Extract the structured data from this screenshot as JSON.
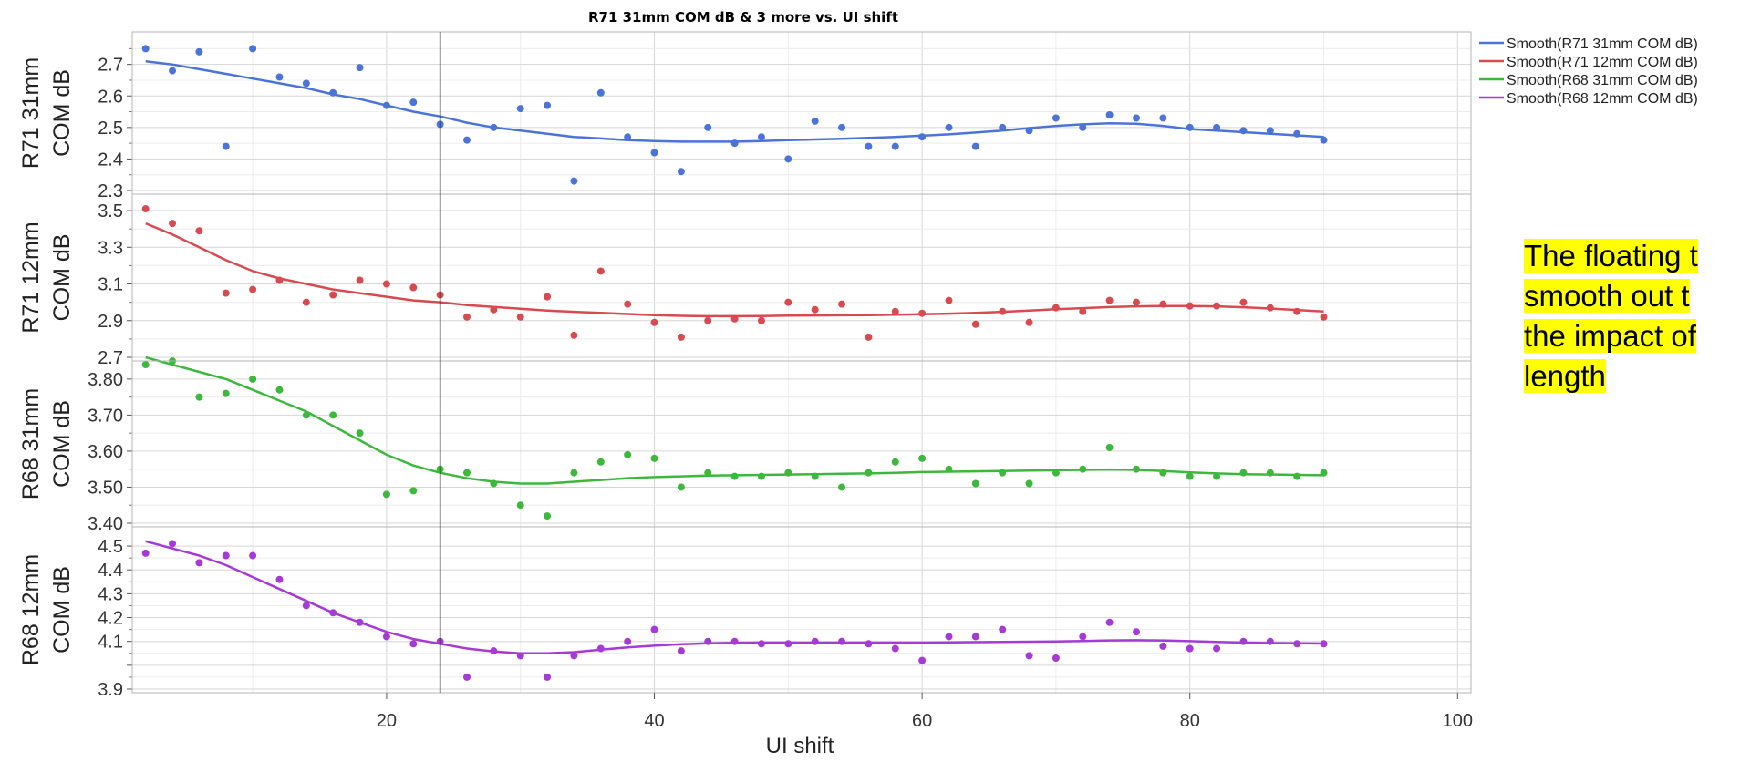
{
  "note": {
    "lines": [
      "The floating t",
      "smooth out t",
      "the impact of",
      "length"
    ],
    "highlight": "#ffff00"
  },
  "chart_data": {
    "type": "scatter",
    "title": "R71 31mm COM dB & 3 more vs. UI shift",
    "xlabel": "UI shift",
    "xlim": [
      1,
      101
    ],
    "xticks": [
      20,
      40,
      60,
      80,
      100
    ],
    "xtick_labels": [
      "20",
      "40",
      "60",
      "80",
      "100"
    ],
    "cursor_x": 24,
    "grid": true,
    "legend_position": "top-right",
    "x": [
      2,
      4,
      6,
      8,
      10,
      12,
      14,
      16,
      18,
      20,
      22,
      24,
      26,
      28,
      30,
      32,
      34,
      36,
      38,
      40,
      42,
      44,
      46,
      48,
      50,
      52,
      54,
      56,
      58,
      60,
      62,
      64,
      66,
      68,
      70,
      72,
      74,
      76,
      78,
      80,
      82,
      84,
      86,
      88,
      90
    ],
    "panels": [
      {
        "ylabel": [
          "R71 31mm",
          "COM dB"
        ],
        "ylim": [
          2.3,
          2.78
        ],
        "yticks": [
          2.3,
          2.4,
          2.5,
          2.6,
          2.7
        ],
        "ytick_labels": [
          "2.3",
          "2.4",
          "2.5",
          "2.6",
          "2.7"
        ],
        "color": "#4c74d8",
        "points": [
          2.75,
          2.68,
          2.74,
          2.44,
          2.75,
          2.66,
          2.64,
          2.61,
          2.69,
          2.57,
          2.58,
          2.51,
          2.46,
          2.5,
          2.56,
          2.57,
          2.33,
          2.61,
          2.47,
          2.42,
          2.36,
          2.5,
          2.45,
          2.47,
          2.4,
          2.52,
          2.5,
          2.44,
          2.44,
          2.47,
          2.5,
          2.44,
          2.5,
          2.49,
          2.53,
          2.5,
          2.54,
          2.53,
          2.53,
          2.5,
          2.5,
          2.49,
          2.49,
          2.48,
          2.46
        ],
        "smooth": [
          2.71,
          2.7,
          2.685,
          2.67,
          2.655,
          2.64,
          2.625,
          2.605,
          2.59,
          2.57,
          2.55,
          2.535,
          2.515,
          2.5,
          2.49,
          2.48,
          2.47,
          2.465,
          2.46,
          2.457,
          2.455,
          2.455,
          2.455,
          2.457,
          2.46,
          2.462,
          2.464,
          2.467,
          2.47,
          2.474,
          2.478,
          2.484,
          2.49,
          2.498,
          2.505,
          2.51,
          2.513,
          2.512,
          2.505,
          2.495,
          2.49,
          2.485,
          2.48,
          2.475,
          2.47
        ]
      },
      {
        "ylabel": [
          "R71 12mm",
          "COM dB"
        ],
        "ylim": [
          2.7,
          3.55
        ],
        "yticks": [
          2.7,
          2.9,
          3.1,
          3.3,
          3.5
        ],
        "ytick_labels": [
          "2.7",
          "2.9",
          "3.1",
          "3.3",
          "3.5"
        ],
        "color": "#d64a50",
        "points": [
          3.51,
          3.43,
          3.39,
          3.05,
          3.07,
          3.12,
          3.0,
          3.04,
          3.12,
          3.1,
          3.08,
          3.04,
          2.92,
          2.96,
          2.92,
          3.03,
          2.82,
          3.17,
          2.99,
          2.89,
          2.81,
          2.9,
          2.91,
          2.9,
          3.0,
          2.96,
          2.99,
          2.81,
          2.95,
          2.94,
          3.01,
          2.88,
          2.95,
          2.89,
          2.97,
          2.95,
          3.01,
          3.0,
          2.99,
          2.98,
          2.98,
          3.0,
          2.97,
          2.95,
          2.92
        ],
        "smooth": [
          3.43,
          3.37,
          3.3,
          3.23,
          3.17,
          3.13,
          3.1,
          3.07,
          3.05,
          3.03,
          3.01,
          3.0,
          2.985,
          2.975,
          2.965,
          2.955,
          2.948,
          2.942,
          2.936,
          2.93,
          2.926,
          2.924,
          2.924,
          2.925,
          2.927,
          2.928,
          2.929,
          2.93,
          2.932,
          2.935,
          2.938,
          2.942,
          2.948,
          2.955,
          2.962,
          2.968,
          2.974,
          2.978,
          2.98,
          2.98,
          2.978,
          2.973,
          2.966,
          2.958,
          2.95
        ]
      },
      {
        "ylabel": [
          "R68 31mm",
          "COM dB"
        ],
        "ylim": [
          3.4,
          3.83
        ],
        "yticks": [
          3.4,
          3.5,
          3.6,
          3.7,
          3.8
        ],
        "ytick_labels": [
          "3.40",
          "3.50",
          "3.60",
          "3.70",
          "3.80"
        ],
        "color": "#3db83d",
        "points": [
          3.84,
          3.85,
          3.75,
          3.76,
          3.8,
          3.77,
          3.7,
          3.7,
          3.65,
          3.48,
          3.49,
          3.55,
          3.54,
          3.51,
          3.45,
          3.42,
          3.54,
          3.57,
          3.59,
          3.58,
          3.5,
          3.54,
          3.53,
          3.53,
          3.54,
          3.53,
          3.5,
          3.54,
          3.57,
          3.58,
          3.55,
          3.51,
          3.54,
          3.51,
          3.54,
          3.55,
          3.61,
          3.55,
          3.54,
          3.53,
          3.53,
          3.54,
          3.54,
          3.53,
          3.54
        ],
        "smooth": [
          3.86,
          3.84,
          3.82,
          3.8,
          3.77,
          3.74,
          3.71,
          3.67,
          3.63,
          3.59,
          3.56,
          3.54,
          3.525,
          3.515,
          3.51,
          3.51,
          3.515,
          3.52,
          3.525,
          3.528,
          3.53,
          3.532,
          3.533,
          3.534,
          3.535,
          3.536,
          3.537,
          3.538,
          3.54,
          3.542,
          3.543,
          3.544,
          3.545,
          3.546,
          3.547,
          3.548,
          3.549,
          3.548,
          3.545,
          3.541,
          3.538,
          3.536,
          3.535,
          3.534,
          3.533
        ]
      },
      {
        "ylabel": [
          "R68 12mm",
          "COM dB"
        ],
        "ylim": [
          3.9,
          4.55
        ],
        "yticks": [
          3.9,
          4.0,
          4.1,
          4.2,
          4.3,
          4.4,
          4.5
        ],
        "ytick_labels": [
          "3.9",
          "",
          "4.1",
          "4.2",
          "4.3",
          "4.4",
          "4.5"
        ],
        "color": "#a63ad6",
        "points": [
          4.47,
          4.51,
          4.43,
          4.46,
          4.46,
          4.36,
          4.25,
          4.22,
          4.18,
          4.12,
          4.09,
          4.1,
          3.95,
          4.06,
          4.04,
          3.95,
          4.04,
          4.07,
          4.1,
          4.15,
          4.06,
          4.1,
          4.1,
          4.09,
          4.09,
          4.1,
          4.1,
          4.09,
          4.07,
          4.02,
          4.12,
          4.12,
          4.15,
          4.04,
          4.03,
          4.12,
          4.18,
          4.14,
          4.08,
          4.07,
          4.07,
          4.1,
          4.1,
          4.09,
          4.09
        ],
        "smooth": [
          4.52,
          4.49,
          4.46,
          4.42,
          4.37,
          4.32,
          4.27,
          4.22,
          4.18,
          4.14,
          4.11,
          4.09,
          4.07,
          4.058,
          4.05,
          4.05,
          4.055,
          4.065,
          4.075,
          4.082,
          4.088,
          4.092,
          4.094,
          4.095,
          4.095,
          4.095,
          4.095,
          4.095,
          4.095,
          4.095,
          4.096,
          4.097,
          4.098,
          4.099,
          4.1,
          4.102,
          4.104,
          4.105,
          4.104,
          4.101,
          4.098,
          4.095,
          4.093,
          4.092,
          4.091
        ]
      }
    ],
    "legend": [
      {
        "name": "Smooth(R71 31mm COM dB)",
        "color": "#4c74d8"
      },
      {
        "name": "Smooth(R71 12mm COM dB)",
        "color": "#d64a50"
      },
      {
        "name": "Smooth(R68 31mm COM dB)",
        "color": "#3db83d"
      },
      {
        "name": "Smooth(R68 12mm COM dB)",
        "color": "#a63ad6"
      }
    ]
  }
}
